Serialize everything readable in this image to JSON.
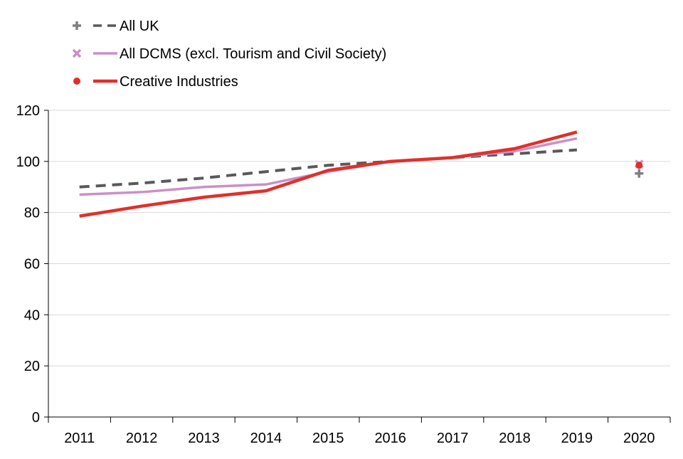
{
  "chart_data": {
    "type": "line",
    "title": "",
    "xlabel": "",
    "ylabel": "",
    "categories": [
      "2011",
      "2012",
      "2013",
      "2014",
      "2015",
      "2016",
      "2017",
      "2018",
      "2019",
      "2020"
    ],
    "ylim": [
      0,
      120
    ],
    "yticks": [
      "0",
      "20",
      "40",
      "60",
      "80",
      "100",
      "120"
    ],
    "grid": true,
    "legend_position": "top-left",
    "series": [
      {
        "name": "All UK",
        "color": "#595959",
        "dash": true,
        "marker": "plus",
        "values": [
          90,
          91.5,
          93.5,
          96,
          98.5,
          100,
          101.5,
          103,
          104.5,
          95.3
        ]
      },
      {
        "name": "All DCMS (excl. Tourism and Civil Society)",
        "color": "#cc8fc8",
        "dash": false,
        "marker": "cross",
        "values": [
          87,
          88,
          90,
          91,
          96,
          100,
          101.5,
          104,
          109,
          99
        ]
      },
      {
        "name": "Creative Industries",
        "color": "#e0302b",
        "dash": false,
        "marker": "dot",
        "values": [
          78.6,
          82.5,
          86,
          88.5,
          96.5,
          100,
          101.5,
          105,
          111.5,
          98.5
        ]
      }
    ],
    "note": "2020 shown as separate markers only"
  }
}
